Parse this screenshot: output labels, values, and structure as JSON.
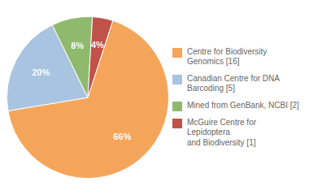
{
  "chart_data": {
    "type": "pie",
    "categories": [
      "Centre for Biodiversity\nGenomics [16]",
      "Canadian Centre for DNA\nBarcoding [5]",
      "Mined from GenBank, NCBI [2]",
      "McGuire Centre for Lepidoptera\nand Biodiversity [1]"
    ],
    "values": [
      66,
      20,
      8,
      4
    ],
    "value_labels": [
      "66%",
      "20%",
      "8%",
      "4%"
    ],
    "colors": [
      "#f5a55a",
      "#a8c4e0",
      "#8fba6e",
      "#c0524a"
    ],
    "data_labels": true,
    "legend": "right"
  }
}
